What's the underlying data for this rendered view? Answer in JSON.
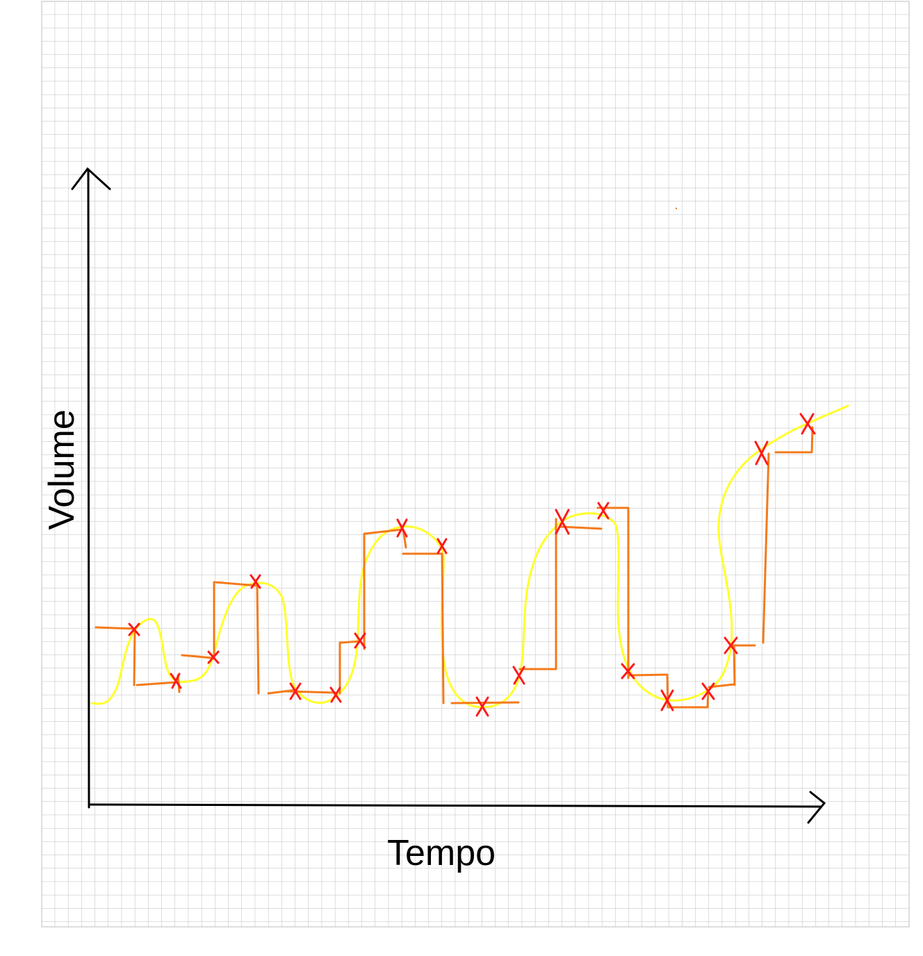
{
  "labels": {
    "y_axis": "Volume",
    "x_axis": "Tempo"
  },
  "colors": {
    "grid": "#bdbdbd",
    "axis": "#000000",
    "curve": "#ffff2a",
    "steps": "#f47a1a",
    "marks": "#ff1a1a"
  },
  "legend": "none"
}
